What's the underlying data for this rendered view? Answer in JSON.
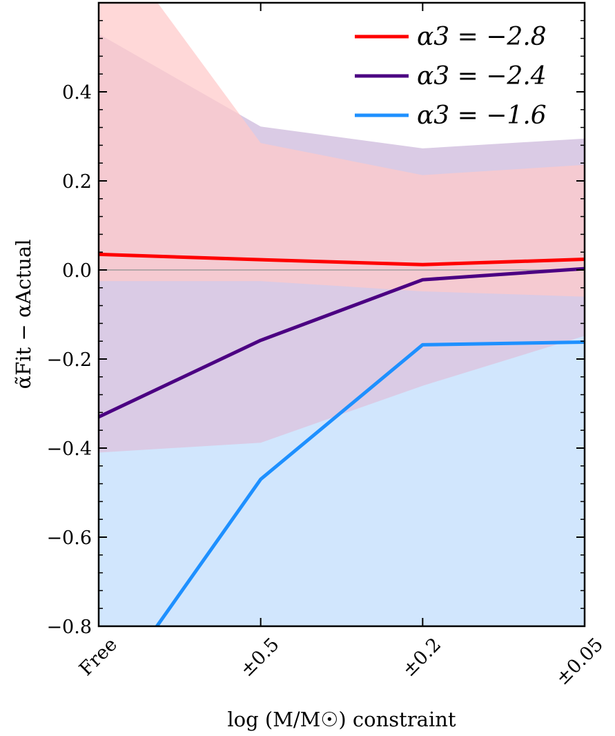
{
  "chart_data": {
    "type": "line",
    "xlabel": "log (M/M☉) constraint",
    "ylabel": "α̃Fit − αActual",
    "categories": [
      "Free",
      "±0.5",
      "±0.2",
      "±0.05"
    ],
    "ylim": [
      -0.8,
      0.6
    ],
    "yticks": [
      -0.8,
      -0.6,
      -0.4,
      -0.2,
      0.0,
      0.2,
      0.4
    ],
    "ytick_labels": [
      "−0.8",
      "−0.6",
      "−0.4",
      "−0.2",
      "0.0",
      "0.2",
      "0.4"
    ],
    "reference_line": 0.0,
    "legend_position": "top-right",
    "series": [
      {
        "name": "α3 = −2.8",
        "color": "#ff0000",
        "values": [
          0.035,
          0.023,
          0.012,
          0.024
        ],
        "band_upper": [
          0.78,
          0.285,
          0.213,
          0.236
        ],
        "band_lower": [
          -0.025,
          -0.025,
          -0.048,
          -0.06
        ],
        "band_color": "#ffc9c9"
      },
      {
        "name": "α3 = −2.4",
        "color": "#4b0082",
        "values": [
          -0.33,
          -0.158,
          -0.022,
          0.003
        ],
        "band_upper": [
          0.53,
          0.322,
          0.273,
          0.295
        ],
        "band_lower": [
          -0.41,
          -0.388,
          -0.26,
          -0.148
        ],
        "band_color": "#dacbe5"
      },
      {
        "name": "α3 = −1.6",
        "color": "#1e90ff",
        "values": [
          -0.985,
          -0.47,
          -0.168,
          -0.162
        ],
        "band_upper": [
          -0.158,
          -0.15,
          -0.055,
          -0.06
        ],
        "band_lower": [
          -0.8,
          -0.8,
          -0.8,
          -0.8
        ],
        "band_color": "#d1e6fd"
      }
    ]
  }
}
